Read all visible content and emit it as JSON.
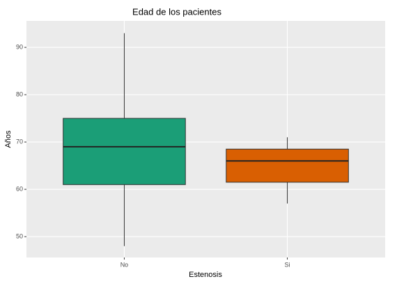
{
  "chart_data": {
    "type": "box",
    "title": "Edad de los pacientes",
    "x_label": "Estenosis",
    "y_label": "Años",
    "categories": [
      "No",
      "Si"
    ],
    "colors": [
      "#1b9e77",
      "#d95f02"
    ],
    "min": [
      48,
      57
    ],
    "q1": [
      61,
      61.5
    ],
    "median": [
      69,
      66
    ],
    "q3": [
      75,
      68.5
    ],
    "max": [
      93,
      71
    ],
    "ylim": [
      45.6,
      95.6
    ],
    "yticks": [
      50,
      60,
      70,
      80,
      90
    ],
    "grid": true
  }
}
